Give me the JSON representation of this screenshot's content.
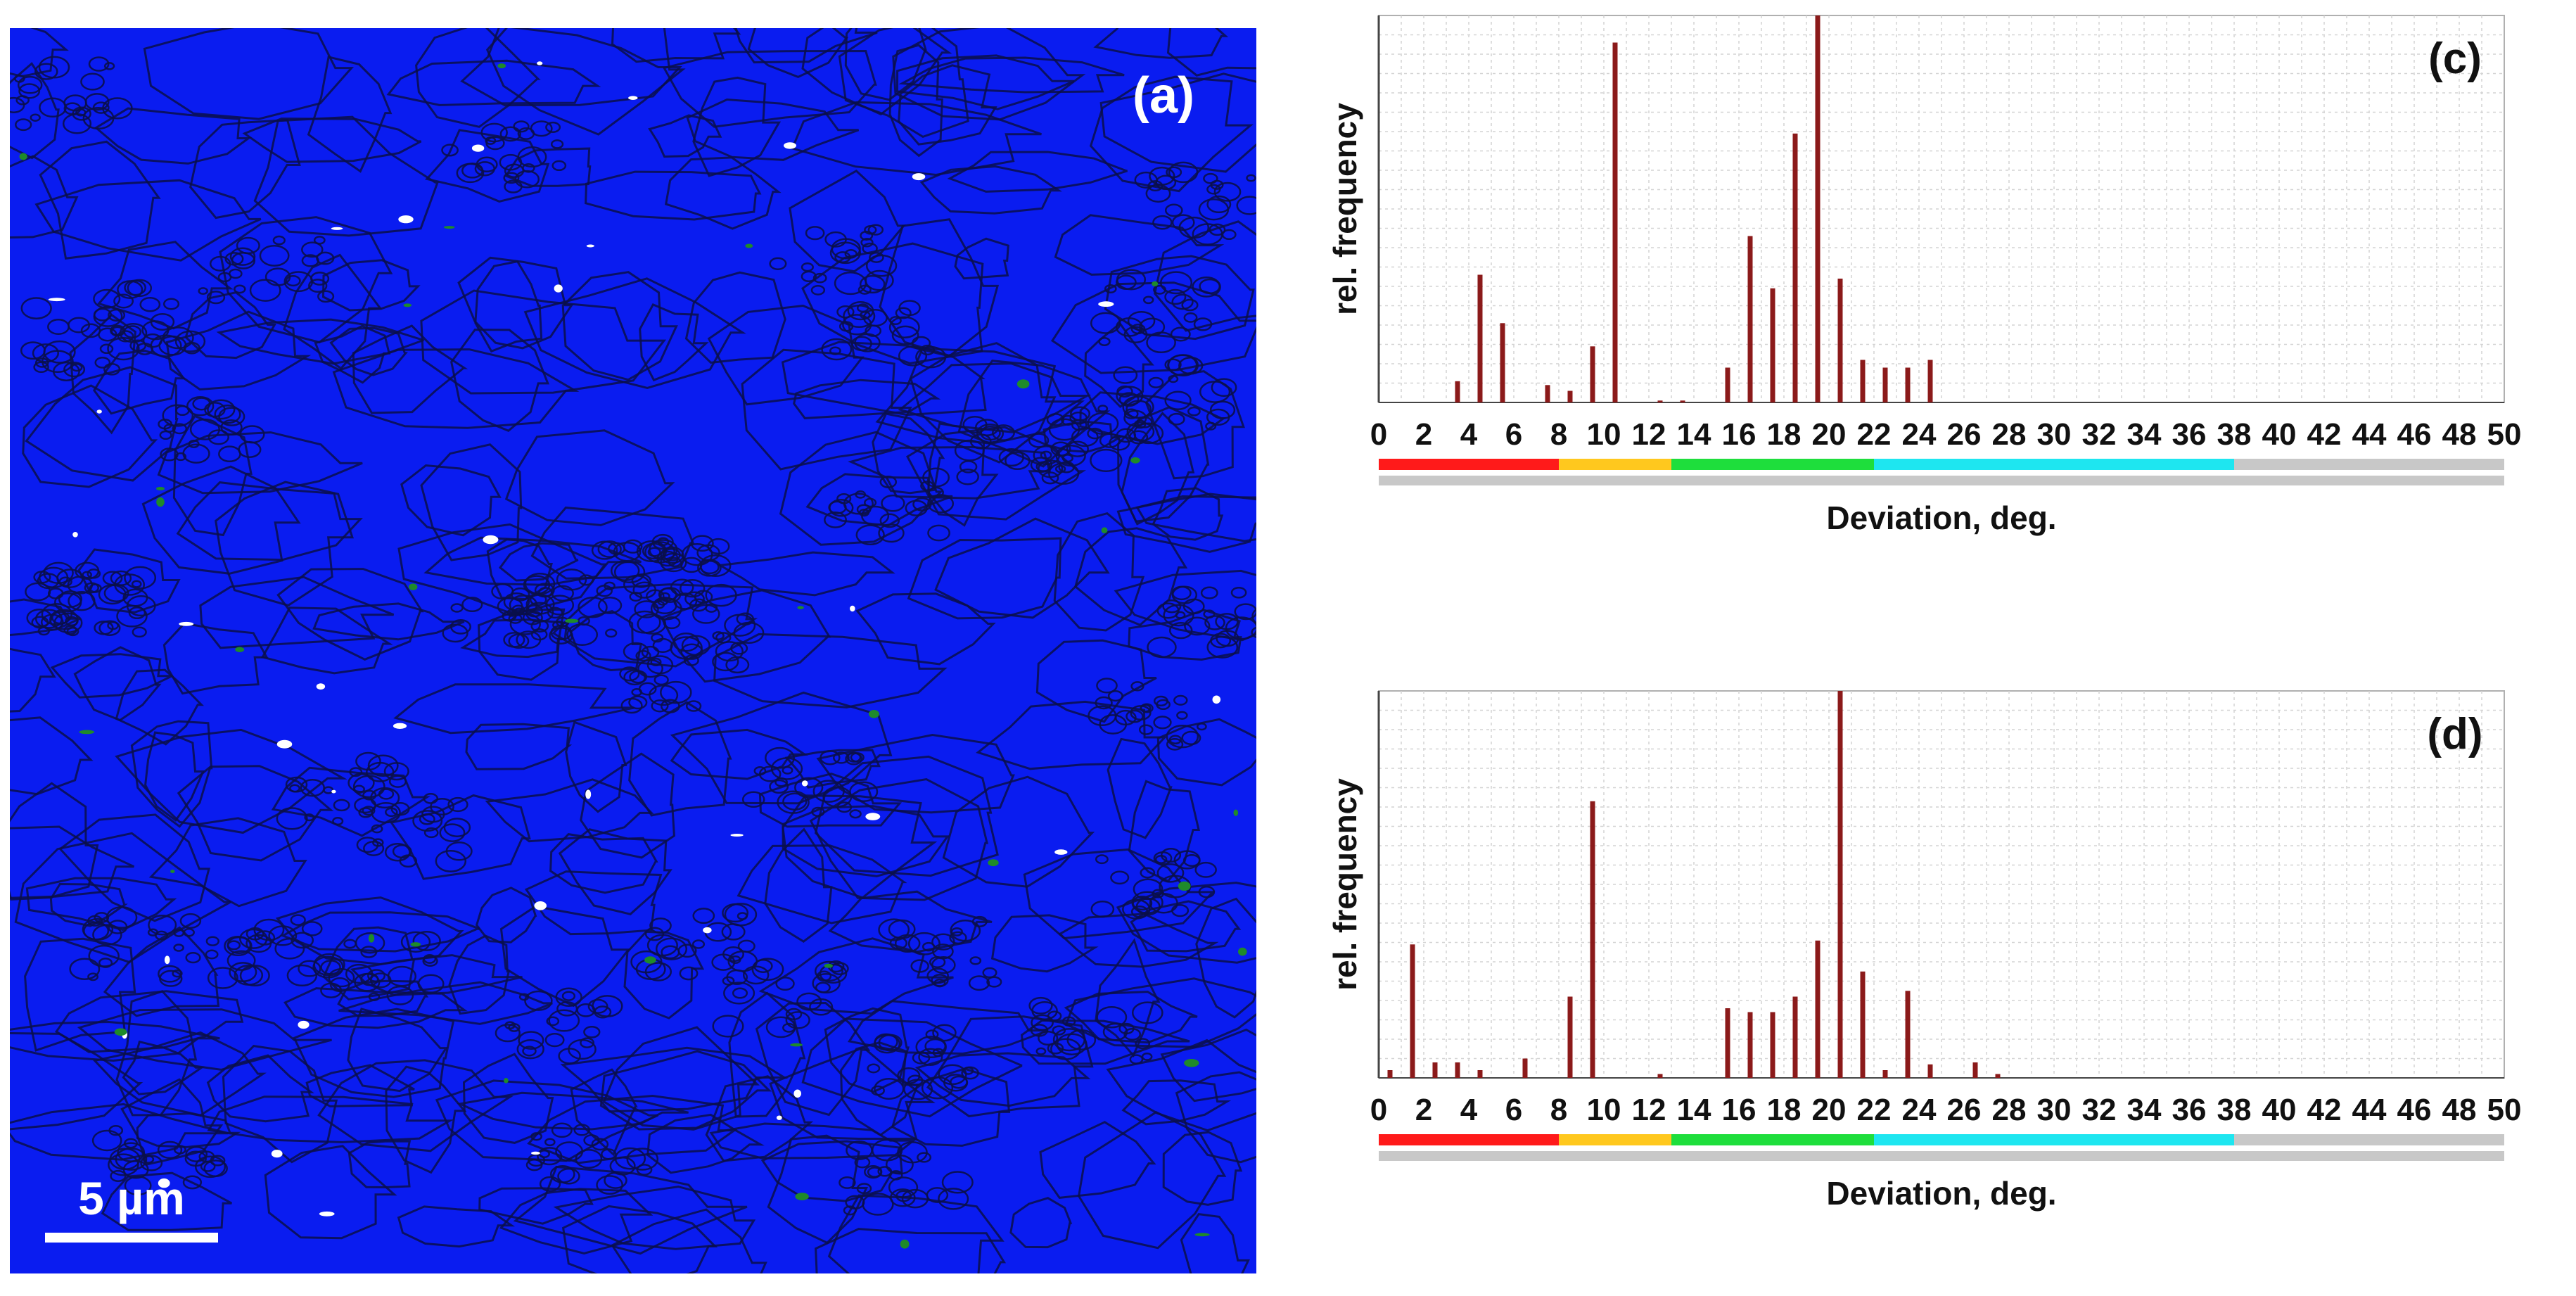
{
  "micrograph": {
    "panel_label": "(a)",
    "scale_bar_label": "5 µm",
    "colors": {
      "matrix": "#0a1cf0",
      "boundary": "#0a0f4a",
      "phase_green": "#1f8a2a",
      "phase_white": "#ffffff"
    }
  },
  "chart_data": [
    {
      "type": "bar",
      "panel_label": "(c)",
      "title": "",
      "xlabel": "Deviation, deg.",
      "ylabel": "rel. frequency",
      "xlim": [
        0,
        50
      ],
      "ylim": [
        0,
        1.0
      ],
      "x_ticks": [
        "0",
        "2",
        "4",
        "6",
        "8",
        "10",
        "12",
        "14",
        "16",
        "18",
        "20",
        "22",
        "24",
        "26",
        "28",
        "30",
        "32",
        "34",
        "36",
        "38",
        "40",
        "42",
        "44",
        "46",
        "48",
        "50"
      ],
      "x": [
        3.5,
        4.5,
        5.5,
        7.5,
        8.5,
        9.5,
        10.5,
        12.5,
        13.5,
        15.5,
        16.5,
        17.5,
        18.5,
        19.5,
        20.5,
        21.5,
        22.5,
        23.5,
        24.5
      ],
      "values": [
        0.055,
        0.33,
        0.205,
        0.045,
        0.03,
        0.145,
        0.93,
        0.005,
        0.005,
        0.09,
        0.43,
        0.295,
        0.695,
        1.0,
        0.32,
        0.11,
        0.09,
        0.09,
        0.11
      ],
      "bar_color": "#8b1a1a",
      "color_scale": [
        {
          "from": 0,
          "to": 8,
          "color": "#ff1a1a"
        },
        {
          "from": 8,
          "to": 13,
          "color": "#ffc81e"
        },
        {
          "from": 13,
          "to": 22,
          "color": "#1ede3c"
        },
        {
          "from": 22,
          "to": 38,
          "color": "#1ee6f0"
        },
        {
          "from": 38,
          "to": 50,
          "color": "#c8c8c8"
        }
      ]
    },
    {
      "type": "bar",
      "panel_label": "(d)",
      "title": "",
      "xlabel": "Deviation, deg.",
      "ylabel": "rel. frequency",
      "xlim": [
        0,
        50
      ],
      "ylim": [
        0,
        1.0
      ],
      "x_ticks": [
        "0",
        "2",
        "4",
        "6",
        "8",
        "10",
        "12",
        "14",
        "16",
        "18",
        "20",
        "22",
        "24",
        "26",
        "28",
        "30",
        "32",
        "34",
        "36",
        "38",
        "40",
        "42",
        "44",
        "46",
        "48",
        "50"
      ],
      "x": [
        0.5,
        1.5,
        2.5,
        3.5,
        4.5,
        6.5,
        8.5,
        9.5,
        12.5,
        15.5,
        16.5,
        17.5,
        18.5,
        19.5,
        20.5,
        21.5,
        22.5,
        23.5,
        24.5,
        26.5,
        27.5
      ],
      "values": [
        0.02,
        0.345,
        0.04,
        0.04,
        0.02,
        0.05,
        0.21,
        0.715,
        0.01,
        0.18,
        0.17,
        0.17,
        0.21,
        0.355,
        1.0,
        0.275,
        0.02,
        0.225,
        0.035,
        0.04,
        0.01
      ],
      "bar_color": "#8b1a1a",
      "color_scale": [
        {
          "from": 0,
          "to": 8,
          "color": "#ff1a1a"
        },
        {
          "from": 8,
          "to": 13,
          "color": "#ffc81e"
        },
        {
          "from": 13,
          "to": 22,
          "color": "#1ede3c"
        },
        {
          "from": 22,
          "to": 38,
          "color": "#1ee6f0"
        },
        {
          "from": 38,
          "to": 50,
          "color": "#c8c8c8"
        }
      ]
    }
  ]
}
